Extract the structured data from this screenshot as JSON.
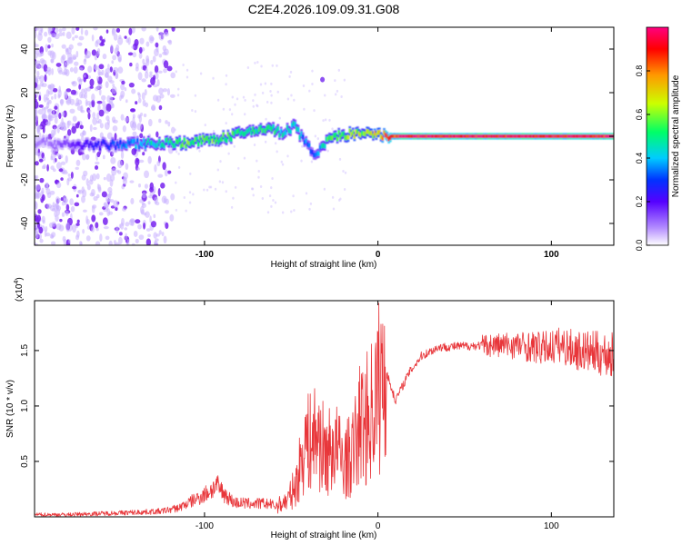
{
  "title": "C2E4.2026.109.09.31.G08",
  "chart_data": [
    {
      "type": "heatmap",
      "name": "spectrogram",
      "xlabel": "Height of straight line (km)",
      "ylabel": "Frequency (Hz)",
      "xlim": [
        -198,
        136
      ],
      "ylim": [
        -50,
        50
      ],
      "xticks": [
        -100,
        0,
        100
      ],
      "yticks": [
        -40,
        -20,
        0,
        20,
        40
      ],
      "colorbar": {
        "label": "Normalized spectral amplitude",
        "range": [
          0,
          1
        ],
        "ticks": [
          "0.0",
          "0.2",
          "0.4",
          "0.6",
          "0.8"
        ],
        "tick_values": [
          0.0,
          0.2,
          0.4,
          0.6,
          0.8
        ],
        "colors": [
          "#ffffff",
          "#b38cff",
          "#5500ff",
          "#0033ff",
          "#00ccff",
          "#00ff66",
          "#ccff00",
          "#ff9900",
          "#ff0000",
          "#ff0080"
        ]
      },
      "ridge": {
        "x": [
          -190,
          -170,
          -150,
          -130,
          -110,
          -90,
          -75,
          -62,
          -55,
          -48,
          -42,
          -36,
          -30,
          -25,
          -15,
          -5,
          5,
          20,
          40,
          80,
          136
        ],
        "freq_hz": [
          -3,
          -4,
          -4,
          -3,
          -3,
          -1,
          2,
          4,
          1,
          5,
          -3,
          -8,
          -3,
          0,
          1,
          1,
          0,
          0,
          0,
          0,
          0
        ],
        "amplitude": [
          0.1,
          0.2,
          0.3,
          0.45,
          0.55,
          0.55,
          0.5,
          0.5,
          0.45,
          0.45,
          0.35,
          0.3,
          0.5,
          0.55,
          0.6,
          0.6,
          0.85,
          0.95,
          0.95,
          0.95,
          0.95
        ]
      }
    },
    {
      "type": "line",
      "name": "snr",
      "xlabel": "Height of straight line (km)",
      "ylabel": "SNR (10 * v/v)",
      "scale_label": "(x10",
      "scale_exponent": "4",
      "xlim": [
        -198,
        136
      ],
      "ylim": [
        0,
        1.95
      ],
      "xticks": [
        -100,
        0,
        100
      ],
      "yticks": [
        0.5,
        1.0,
        1.5
      ],
      "ytick_labels": [
        "0.5",
        "1.0",
        "1.5"
      ],
      "color": "#e8363a",
      "series": [
        {
          "name": "SNR",
          "x": [
            -198,
            -180,
            -160,
            -140,
            -125,
            -115,
            -110,
            -100,
            -93,
            -88,
            -83,
            -75,
            -65,
            -58,
            -52,
            -47,
            -45,
            -42,
            -40,
            -35,
            -30,
            -25,
            -20,
            -15,
            -10,
            -5,
            -2,
            0,
            5,
            10,
            18,
            25,
            35,
            50,
            65,
            80,
            95,
            105,
            115,
            125,
            136
          ],
          "y": [
            0.02,
            0.02,
            0.03,
            0.04,
            0.05,
            0.08,
            0.12,
            0.2,
            0.28,
            0.2,
            0.13,
            0.12,
            0.12,
            0.1,
            0.15,
            0.3,
            0.45,
            0.7,
            0.65,
            0.75,
            0.55,
            0.65,
            0.5,
            0.55,
            0.85,
            0.9,
            1.05,
            1.15,
            1.3,
            1.05,
            1.3,
            1.45,
            1.53,
            1.54,
            1.55,
            1.55,
            1.52,
            1.55,
            1.5,
            1.48,
            1.45
          ]
        }
      ]
    }
  ]
}
